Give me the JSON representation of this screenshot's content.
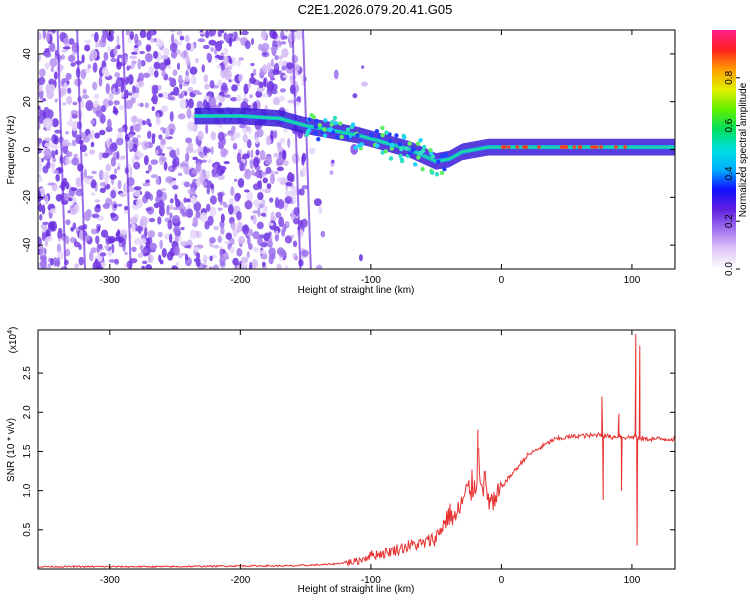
{
  "title": "C2E1.2026.079.20.41.G05",
  "chart_data": [
    {
      "type": "heatmap",
      "xlabel": "Height of straight line (km)",
      "ylabel": "Frequency (Hz)",
      "xlim": [
        -355,
        133
      ],
      "ylim": [
        -50,
        50
      ],
      "x_ticks": [
        -300,
        -200,
        -100,
        0,
        100
      ],
      "x_tick_labels": [
        "-300",
        "-200",
        "-100",
        "0",
        "100"
      ],
      "y_ticks": [
        -40,
        -20,
        0,
        20,
        40
      ],
      "y_tick_labels": [
        "-40",
        "-20",
        "0",
        "20",
        "40"
      ],
      "colorbar": {
        "label": "Normalized spectral amplitude",
        "range": [
          0.0,
          1.0
        ],
        "ticks": [
          0.0,
          0.2,
          0.4,
          0.6,
          0.8
        ],
        "tick_labels": [
          "0.0",
          "0.2",
          "0.4",
          "0.6",
          "0.8"
        ],
        "colormap": [
          "#ffffff",
          "#dfc8f7",
          "#a070f0",
          "#6020e0",
          "#1010ff",
          "#00b0ff",
          "#00e0e0",
          "#00e060",
          "#60f000",
          "#e0f000",
          "#ffa000",
          "#ff2020",
          "#ff2090"
        ]
      },
      "track": {
        "x": [
          -235,
          -200,
          -170,
          -150,
          -130,
          -110,
          -90,
          -70,
          -50,
          -40,
          -30,
          -10,
          0,
          20,
          40,
          60,
          80,
          100,
          133
        ],
        "y": [
          14,
          14,
          13,
          10,
          8,
          6,
          3,
          0,
          -5,
          -4,
          -1,
          1,
          1,
          1,
          1,
          1,
          1,
          1,
          1
        ]
      }
    },
    {
      "type": "line",
      "xlabel": "Height of straight line (km)",
      "ylabel": "SNR (10 * v/v)",
      "y_multiplier_label": "(x10",
      "y_multiplier_exp": "4",
      "xlim": [
        -355,
        133
      ],
      "ylim": [
        0,
        3.05
      ],
      "x_ticks": [
        -300,
        -200,
        -100,
        0,
        100
      ],
      "x_tick_labels": [
        "-300",
        "-200",
        "-100",
        "0",
        "100"
      ],
      "y_ticks": [
        0.5,
        1.0,
        1.5,
        2.0,
        2.5
      ],
      "y_tick_labels": [
        "0.5",
        "1.0",
        "1.5",
        "2.0",
        "2.5"
      ],
      "color": "#e83030",
      "series": [
        {
          "x": [
            -355,
            -300,
            -250,
            -200,
            -160,
            -130,
            -110,
            -100,
            -90,
            -80,
            -70,
            -60,
            -50,
            -45,
            -40,
            -35,
            -30,
            -25,
            -20,
            -18,
            -15,
            -10,
            -5,
            0,
            10,
            20,
            30,
            40,
            50,
            60,
            70,
            75,
            80,
            85,
            90,
            95,
            100,
            103,
            105,
            108,
            110,
            120,
            133
          ],
          "y": [
            0.03,
            0.03,
            0.03,
            0.04,
            0.04,
            0.06,
            0.1,
            0.18,
            0.2,
            0.25,
            0.3,
            0.32,
            0.4,
            0.55,
            0.7,
            0.65,
            0.85,
            1.0,
            1.1,
            1.4,
            1.2,
            0.9,
            0.8,
            1.05,
            1.25,
            1.45,
            1.55,
            1.65,
            1.68,
            1.7,
            1.7,
            1.72,
            1.7,
            1.68,
            1.7,
            1.68,
            1.68,
            1.7,
            1.65,
            1.67,
            1.66,
            1.66,
            1.66
          ]
        }
      ],
      "spikes": [
        {
          "x": -18,
          "y": 1.78
        },
        {
          "x": 77,
          "y": 2.2
        },
        {
          "x": 78,
          "y": 0.88
        },
        {
          "x": 90,
          "y": 1.98
        },
        {
          "x": 92,
          "y": 1.0
        },
        {
          "x": 103,
          "y": 3.0
        },
        {
          "x": 104,
          "y": 0.3
        },
        {
          "x": 106,
          "y": 2.85
        }
      ]
    }
  ]
}
